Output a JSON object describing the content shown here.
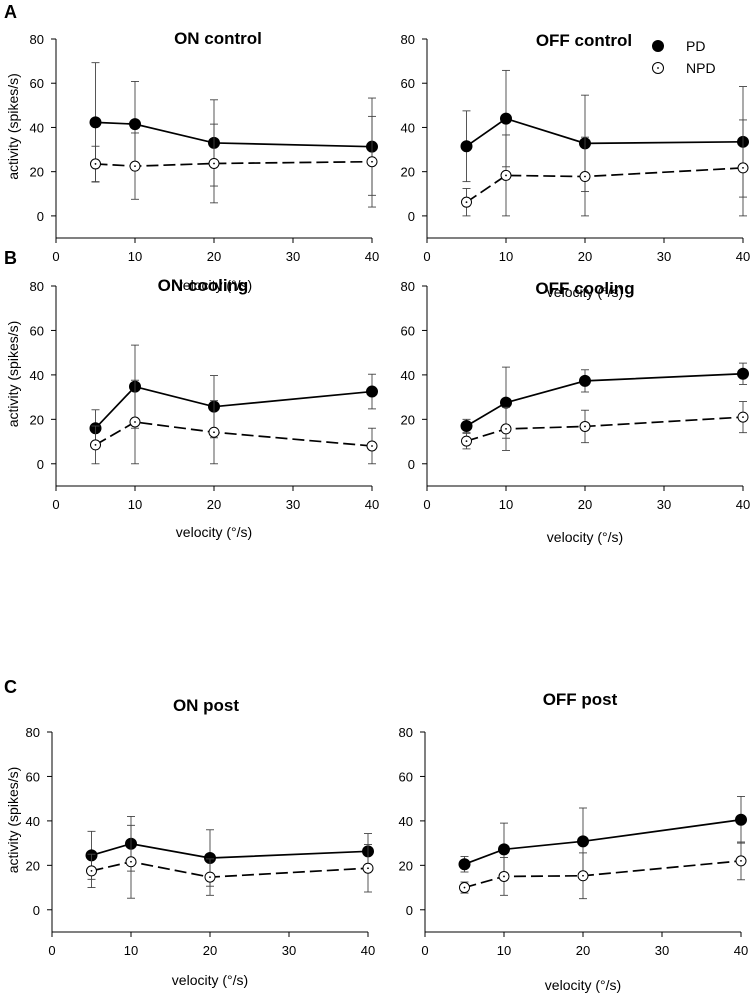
{
  "legend": {
    "pd_label": "PD",
    "npd_label": "NPD"
  },
  "chart_data": [
    {
      "type": "line",
      "panel_label": "A",
      "title": "ON control",
      "xlabel": "velocity (°/s)",
      "ylabel": "activity (spikes/s)",
      "xlim": [
        0,
        40
      ],
      "ylim": [
        -10,
        80
      ],
      "xticks": [
        "0",
        "10",
        "20",
        "30",
        "40"
      ],
      "yticks": [
        "0",
        "20",
        "40",
        "60",
        "80"
      ],
      "series": [
        {
          "name": "PD",
          "x": [
            5,
            10,
            20,
            40
          ],
          "values": [
            42.3,
            41.5,
            33,
            31.3
          ],
          "err": [
            27,
            19.3,
            19.5,
            22
          ]
        },
        {
          "name": "NPD",
          "x": [
            5,
            10,
            20,
            40
          ],
          "values": [
            23.5,
            22.5,
            23.7,
            24.5
          ],
          "err": [
            8,
            15,
            17.8,
            20.5
          ]
        }
      ]
    },
    {
      "type": "line",
      "panel_label": "",
      "title": "OFF control",
      "xlabel": "velocity (°/s)",
      "ylabel": "",
      "xlim": [
        0,
        40
      ],
      "ylim": [
        -10,
        80
      ],
      "xticks": [
        "0",
        "10",
        "20",
        "30",
        "40"
      ],
      "yticks": [
        "0",
        "20",
        "40",
        "60",
        "80"
      ],
      "series": [
        {
          "name": "PD",
          "x": [
            5,
            10,
            20,
            40
          ],
          "values": [
            31.5,
            44,
            32.8,
            33.5
          ],
          "err": [
            16,
            21.8,
            21.8,
            25
          ]
        },
        {
          "name": "NPD",
          "x": [
            5,
            10,
            20,
            40
          ],
          "values": [
            6.2,
            18.3,
            17.8,
            21.7
          ],
          "err": [
            6.2,
            18.3,
            17.8,
            21.7
          ]
        }
      ]
    },
    {
      "type": "line",
      "panel_label": "B",
      "title": "ON cooling",
      "xlabel": "velocity (°/s)",
      "ylabel": "activity (spikes/s)",
      "xlim": [
        0,
        40
      ],
      "ylim": [
        -10,
        80
      ],
      "xticks": [
        "0",
        "10",
        "20",
        "30",
        "40"
      ],
      "yticks": [
        "0",
        "20",
        "40",
        "60",
        "80"
      ],
      "series": [
        {
          "name": "PD",
          "x": [
            5,
            10,
            20,
            40
          ],
          "values": [
            16,
            34.7,
            25.7,
            32.5
          ],
          "err": [
            8.3,
            18.7,
            14,
            7.8
          ]
        },
        {
          "name": "NPD",
          "x": [
            5,
            10,
            20,
            40
          ],
          "values": [
            8.5,
            18.8,
            14.2,
            8
          ],
          "err": [
            8.5,
            18.8,
            14.2,
            8
          ]
        }
      ]
    },
    {
      "type": "line",
      "panel_label": "",
      "title": "OFF cooling",
      "xlabel": "velocity (°/s)",
      "ylabel": "",
      "xlim": [
        0,
        40
      ],
      "ylim": [
        -10,
        80
      ],
      "xticks": [
        "0",
        "10",
        "20",
        "30",
        "40"
      ],
      "yticks": [
        "0",
        "20",
        "40",
        "60",
        "80"
      ],
      "series": [
        {
          "name": "PD",
          "x": [
            5,
            10,
            20,
            40
          ],
          "values": [
            17,
            27.5,
            37.3,
            40.5
          ],
          "err": [
            3,
            16,
            5,
            4.8
          ]
        },
        {
          "name": "NPD",
          "x": [
            5,
            10,
            20,
            40
          ],
          "values": [
            10.2,
            15.7,
            16.8,
            21
          ],
          "err": [
            3.5,
            9.7,
            7.3,
            7
          ]
        }
      ]
    },
    {
      "type": "line",
      "panel_label": "C",
      "title": "ON post",
      "xlabel": "velocity (°/s)",
      "ylabel": "activity (spikes/s)",
      "xlim": [
        0,
        40
      ],
      "ylim": [
        -10,
        80
      ],
      "xticks": [
        "0",
        "10",
        "20",
        "30",
        "40"
      ],
      "yticks": [
        "0",
        "20",
        "40",
        "60",
        "80"
      ],
      "series": [
        {
          "name": "PD",
          "x": [
            5,
            10,
            20,
            40
          ],
          "values": [
            24.5,
            29.7,
            23.3,
            26.3
          ],
          "err": [
            10.8,
            12.3,
            12.7,
            8
          ]
        },
        {
          "name": "NPD",
          "x": [
            5,
            10,
            20,
            40
          ],
          "values": [
            17.5,
            21.6,
            14.7,
            18.7
          ],
          "err": [
            7.5,
            16.4,
            8.2,
            10.7
          ]
        }
      ]
    },
    {
      "type": "line",
      "panel_label": "",
      "title": "OFF post",
      "xlabel": "velocity (°/s)",
      "ylabel": "",
      "xlim": [
        0,
        40
      ],
      "ylim": [
        -10,
        80
      ],
      "xticks": [
        "0",
        "10",
        "20",
        "30",
        "40"
      ],
      "yticks": [
        "0",
        "20",
        "40",
        "60",
        "80"
      ],
      "series": [
        {
          "name": "PD",
          "x": [
            5,
            10,
            20,
            40
          ],
          "values": [
            20.5,
            27.2,
            30.8,
            40.5
          ],
          "err": [
            3.5,
            11.8,
            15,
            10.5
          ]
        },
        {
          "name": "NPD",
          "x": [
            5,
            10,
            20,
            40
          ],
          "values": [
            10,
            15,
            15.3,
            22
          ],
          "err": [
            2.5,
            8.5,
            10.3,
            8.5
          ]
        }
      ]
    }
  ]
}
